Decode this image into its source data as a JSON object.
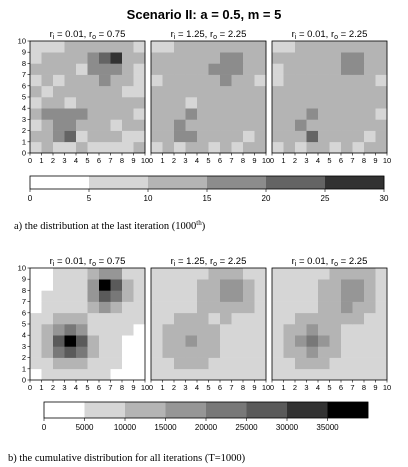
{
  "figure": {
    "title": "Scenario II: a = 0.5, m = 5"
  },
  "chart_data": [
    {
      "type": "heatmap",
      "panel": "a",
      "title_ri": "0.01",
      "title_ro": "0.75",
      "x": [
        0,
        1,
        2,
        3,
        4,
        5,
        6,
        7,
        8,
        9,
        10
      ],
      "y": [
        0,
        1,
        2,
        3,
        4,
        5,
        6,
        7,
        8,
        9,
        10
      ],
      "values": [
        [
          8,
          10,
          8,
          9,
          10,
          8,
          9,
          8,
          9,
          10
        ],
        [
          10,
          13,
          16,
          21,
          9,
          11,
          12,
          10,
          8,
          9
        ],
        [
          9,
          14,
          19,
          18,
          11,
          10,
          14,
          9,
          11,
          10
        ],
        [
          11,
          15,
          17,
          19,
          15,
          12,
          13,
          10,
          12,
          9
        ],
        [
          9,
          11,
          13,
          6,
          13,
          12,
          10,
          11,
          10,
          10
        ],
        [
          12,
          9,
          11,
          13,
          10,
          12,
          14,
          11,
          9,
          9
        ],
        [
          8,
          12,
          9,
          12,
          13,
          11,
          15,
          12,
          10,
          8
        ],
        [
          13,
          10,
          12,
          11,
          9,
          16,
          18,
          16,
          11,
          9
        ],
        [
          9,
          11,
          14,
          10,
          12,
          17,
          24,
          29,
          12,
          10
        ],
        [
          8,
          7,
          9,
          11,
          13,
          12,
          14,
          12,
          11,
          9
        ]
      ],
      "xlim": [
        0,
        10
      ],
      "ylim": [
        0,
        10
      ]
    },
    {
      "type": "heatmap",
      "panel": "a",
      "title_ri": "1.25",
      "title_ro": "2.25",
      "x": [
        0,
        1,
        2,
        3,
        4,
        5,
        6,
        7,
        8,
        9,
        10
      ],
      "y": [
        0,
        1,
        2,
        3,
        4,
        5,
        6,
        7,
        8,
        9,
        10
      ],
      "values": [
        [
          9,
          10,
          9,
          10,
          11,
          9,
          10,
          9,
          10,
          11
        ],
        [
          11,
          12,
          15,
          17,
          10,
          11,
          12,
          10,
          9,
          10
        ],
        [
          10,
          12,
          16,
          14,
          11,
          10,
          13,
          10,
          11,
          10
        ],
        [
          11,
          13,
          14,
          15,
          13,
          12,
          12,
          11,
          12,
          10
        ],
        [
          10,
          11,
          12,
          9,
          12,
          12,
          11,
          11,
          10,
          11
        ],
        [
          12,
          10,
          11,
          12,
          11,
          12,
          13,
          12,
          10,
          10
        ],
        [
          9,
          11,
          10,
          12,
          12,
          13,
          15,
          14,
          11,
          9
        ],
        [
          12,
          10,
          12,
          11,
          10,
          15,
          16,
          17,
          12,
          10
        ],
        [
          10,
          11,
          13,
          11,
          12,
          14,
          18,
          17,
          14,
          11
        ],
        [
          9,
          8,
          10,
          11,
          12,
          11,
          13,
          12,
          11,
          10
        ]
      ],
      "xlim": [
        0,
        10
      ],
      "ylim": [
        0,
        10
      ]
    },
    {
      "type": "heatmap",
      "panel": "a",
      "title_ri": "0.01",
      "title_ro": "2.25",
      "x": [
        0,
        1,
        2,
        3,
        4,
        5,
        6,
        7,
        8,
        9,
        10
      ],
      "y": [
        0,
        1,
        2,
        3,
        4,
        5,
        6,
        7,
        8,
        9,
        10
      ],
      "values": [
        [
          9,
          10,
          9,
          11,
          10,
          9,
          10,
          9,
          10,
          11
        ],
        [
          10,
          12,
          14,
          22,
          11,
          11,
          12,
          10,
          9,
          10
        ],
        [
          11,
          13,
          15,
          14,
          12,
          10,
          13,
          11,
          11,
          10
        ],
        [
          10,
          14,
          13,
          16,
          14,
          12,
          12,
          10,
          12,
          9
        ],
        [
          12,
          11,
          12,
          10,
          12,
          12,
          11,
          11,
          10,
          11
        ],
        [
          11,
          10,
          11,
          12,
          11,
          12,
          13,
          12,
          10,
          10
        ],
        [
          9,
          11,
          10,
          12,
          12,
          13,
          14,
          13,
          11,
          9
        ],
        [
          6,
          10,
          12,
          11,
          10,
          14,
          15,
          16,
          12,
          10
        ],
        [
          10,
          11,
          13,
          11,
          12,
          14,
          17,
          18,
          13,
          11
        ],
        [
          9,
          8,
          10,
          11,
          12,
          11,
          13,
          12,
          11,
          10
        ]
      ],
      "xlim": [
        0,
        10
      ],
      "ylim": [
        0,
        10
      ]
    },
    {
      "type": "heatmap",
      "panel": "b",
      "title_ri": "0.01",
      "title_ro": "0.75",
      "x": [
        0,
        1,
        2,
        3,
        4,
        5,
        6,
        7,
        8,
        9,
        10
      ],
      "y": [
        0,
        1,
        2,
        3,
        4,
        5,
        6,
        7,
        8,
        9,
        10
      ],
      "values": [
        [
          4000,
          5000,
          6000,
          7000,
          7000,
          6000,
          5000,
          4500,
          4000,
          4000
        ],
        [
          6000,
          8000,
          11000,
          13000,
          11000,
          8000,
          6000,
          5000,
          4500,
          4000
        ],
        [
          7000,
          11000,
          20000,
          26000,
          20000,
          10000,
          6500,
          5000,
          4500,
          4000
        ],
        [
          7000,
          12000,
          25000,
          38000,
          25000,
          11000,
          7000,
          5000,
          4500,
          4000
        ],
        [
          6000,
          10000,
          18000,
          23000,
          17000,
          9500,
          7000,
          5500,
          5000,
          4500
        ],
        [
          5000,
          7000,
          10000,
          11000,
          10000,
          8000,
          8000,
          7000,
          6000,
          5000
        ],
        [
          4500,
          5500,
          6500,
          7000,
          8000,
          11000,
          15000,
          13000,
          9000,
          6000
        ],
        [
          4000,
          5000,
          5500,
          6500,
          9000,
          17000,
          26000,
          22000,
          12000,
          7000
        ],
        [
          4000,
          4500,
          5000,
          6000,
          9000,
          19000,
          38000,
          28000,
          13000,
          7000
        ],
        [
          4000,
          4500,
          5000,
          5500,
          7000,
          12000,
          17000,
          15000,
          9000,
          6000
        ]
      ],
      "xlim": [
        0,
        10
      ],
      "ylim": [
        0,
        10
      ]
    },
    {
      "type": "heatmap",
      "panel": "b",
      "title_ri": "1.25",
      "title_ro": "2.25",
      "x": [
        0,
        1,
        2,
        3,
        4,
        5,
        6,
        7,
        8,
        9,
        10
      ],
      "y": [
        0,
        1,
        2,
        3,
        4,
        5,
        6,
        7,
        8,
        9,
        10
      ],
      "values": [
        [
          6000,
          7000,
          7500,
          8000,
          8000,
          7500,
          7000,
          6500,
          6000,
          6000
        ],
        [
          7000,
          8500,
          10000,
          11000,
          10000,
          8500,
          7500,
          7000,
          6500,
          6000
        ],
        [
          7500,
          10000,
          12500,
          14500,
          12500,
          10000,
          8000,
          7000,
          6500,
          6000
        ],
        [
          8000,
          10500,
          14000,
          19000,
          14000,
          10500,
          8500,
          7500,
          7000,
          6500
        ],
        [
          7500,
          10000,
          12500,
          14000,
          12500,
          10000,
          9000,
          8000,
          7500,
          7000
        ],
        [
          7000,
          8500,
          10000,
          10500,
          10000,
          9500,
          10000,
          9500,
          8500,
          7500
        ],
        [
          6500,
          7500,
          8500,
          9000,
          10000,
          12000,
          14000,
          13000,
          11000,
          8500
        ],
        [
          6000,
          7000,
          7500,
          8500,
          10500,
          13500,
          17500,
          16000,
          12500,
          9500
        ],
        [
          6000,
          6500,
          7000,
          8000,
          10000,
          13000,
          16000,
          15000,
          12000,
          9000
        ],
        [
          5500,
          6000,
          6500,
          7000,
          8500,
          10500,
          12500,
          11500,
          9500,
          8000
        ]
      ],
      "xlim": [
        0,
        10
      ],
      "ylim": [
        0,
        10
      ]
    },
    {
      "type": "heatmap",
      "panel": "b",
      "title_ri": "0.01",
      "title_ro": "2.25",
      "x": [
        0,
        1,
        2,
        3,
        4,
        5,
        6,
        7,
        8,
        9,
        10
      ],
      "y": [
        0,
        1,
        2,
        3,
        4,
        5,
        6,
        7,
        8,
        9,
        10
      ],
      "values": [
        [
          6000,
          7000,
          7500,
          8000,
          8000,
          7500,
          7000,
          6500,
          6000,
          6000
        ],
        [
          7000,
          9000,
          11000,
          12000,
          11000,
          9000,
          7500,
          7000,
          6500,
          6000
        ],
        [
          7500,
          11000,
          14000,
          16500,
          14000,
          10500,
          8000,
          7000,
          6500,
          6000
        ],
        [
          8000,
          11500,
          16500,
          22000,
          16000,
          11000,
          8500,
          7500,
          7000,
          6500
        ],
        [
          7500,
          10500,
          13500,
          15500,
          13500,
          10500,
          9000,
          8000,
          7500,
          7000
        ],
        [
          7000,
          8500,
          10000,
          11000,
          10500,
          10000,
          10500,
          10000,
          8500,
          7500
        ],
        [
          6500,
          7500,
          8500,
          9000,
          10500,
          13000,
          15000,
          14000,
          11500,
          8500
        ],
        [
          6000,
          7000,
          7500,
          8500,
          11000,
          14500,
          19500,
          17000,
          13000,
          9500
        ],
        [
          6000,
          6500,
          7000,
          8000,
          10500,
          14000,
          17000,
          16000,
          12500,
          9000
        ],
        [
          5500,
          6000,
          6500,
          7000,
          8500,
          11000,
          13000,
          12000,
          10000,
          8000
        ]
      ],
      "xlim": [
        0,
        10
      ],
      "ylim": [
        0,
        10
      ]
    }
  ],
  "colorbars": [
    {
      "panel": "a",
      "ticks": [
        "0",
        "5",
        "10",
        "15",
        "20",
        "25",
        "30"
      ],
      "tick_values": [
        0,
        5,
        10,
        15,
        20,
        25,
        30
      ],
      "range": [
        0,
        30
      ],
      "levels": [
        "#ffffff",
        "#d6d6d6",
        "#b4b4b4",
        "#8c8c8c",
        "#646464",
        "#323232"
      ]
    },
    {
      "panel": "b",
      "ticks": [
        "0",
        "5000",
        "10000",
        "15000",
        "20000",
        "25000",
        "30000",
        "35000"
      ],
      "tick_values": [
        0,
        5000,
        10000,
        15000,
        20000,
        25000,
        30000,
        35000
      ],
      "range": [
        0,
        40000
      ],
      "levels": [
        "#ffffff",
        "#d6d6d6",
        "#b4b4b4",
        "#969696",
        "#787878",
        "#5a5a5a",
        "#323232",
        "#000000"
      ]
    }
  ],
  "axis_ticks": [
    "0",
    "1",
    "2",
    "3",
    "4",
    "5",
    "6",
    "7",
    "8",
    "9",
    "10"
  ],
  "captions": {
    "a_text": "a) the distribution at the last iteration (1000",
    "a_sup": "th",
    "a_close": ")",
    "b_text": "b) the cumulative distribution for all iterations (T=1000)"
  }
}
